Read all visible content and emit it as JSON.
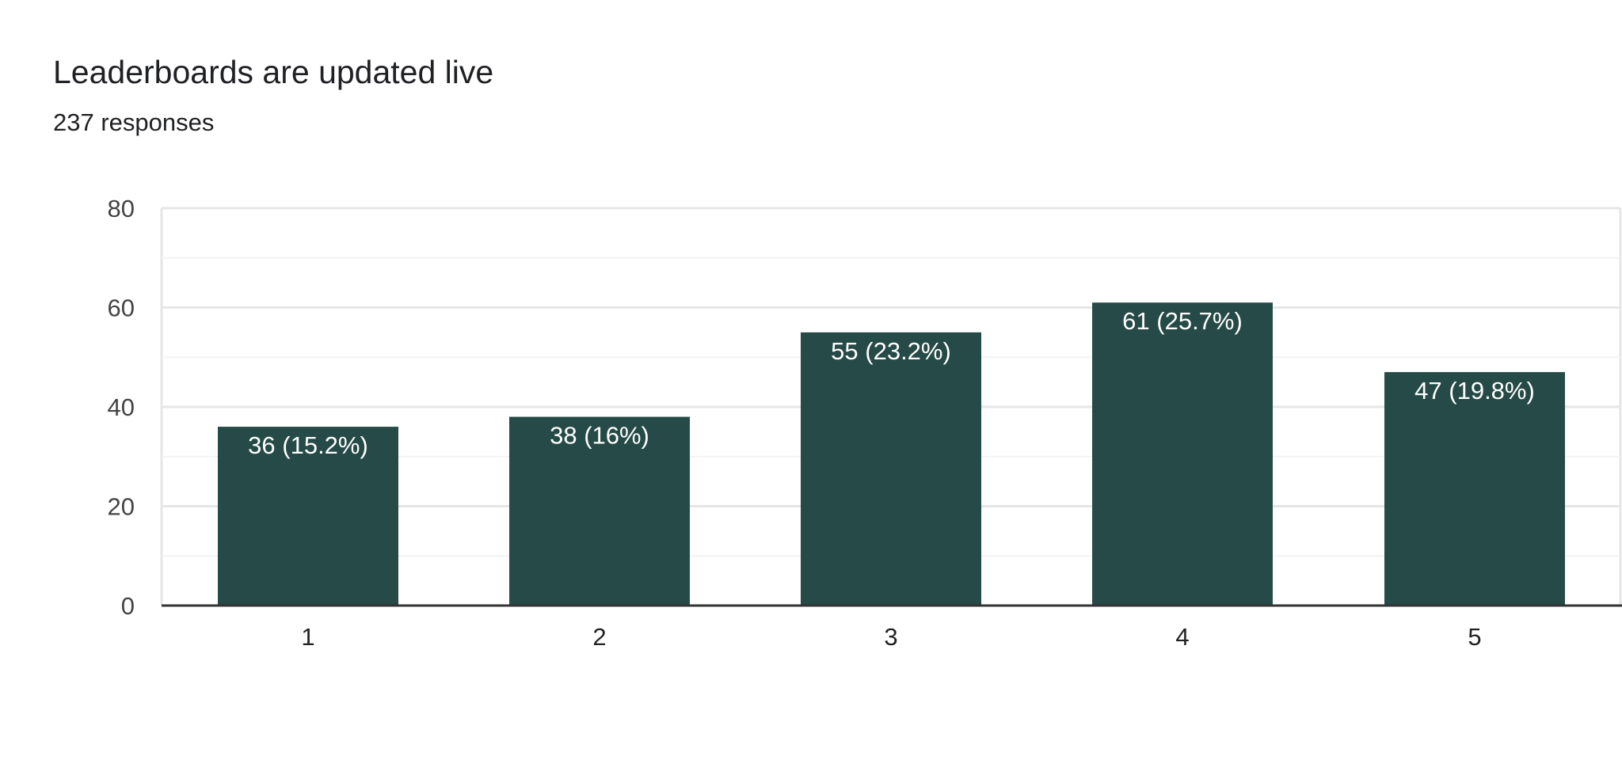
{
  "question": {
    "title": "Leaderboards are updated live",
    "responses": "237 responses"
  },
  "colors": {
    "bar": "#264a47",
    "bar_label": "#ffffff",
    "grid": "#e6e6e6",
    "minor_grid": "#f3f3f3",
    "axis": "#333333",
    "tick_text": "#444444"
  },
  "chart_data": {
    "type": "bar",
    "title": "Leaderboards are updated live",
    "subtitle": "237 responses",
    "categories": [
      "1",
      "2",
      "3",
      "4",
      "5"
    ],
    "values": [
      36,
      38,
      55,
      61,
      47
    ],
    "data_labels": [
      "36 (15.2%)",
      "38 (16%)",
      "55 (23.2%)",
      "61 (25.7%)",
      "47 (19.8%)"
    ],
    "ylim": [
      0,
      80
    ],
    "yticks": [
      0,
      20,
      40,
      60,
      80
    ],
    "grid": true,
    "legend": "none"
  }
}
